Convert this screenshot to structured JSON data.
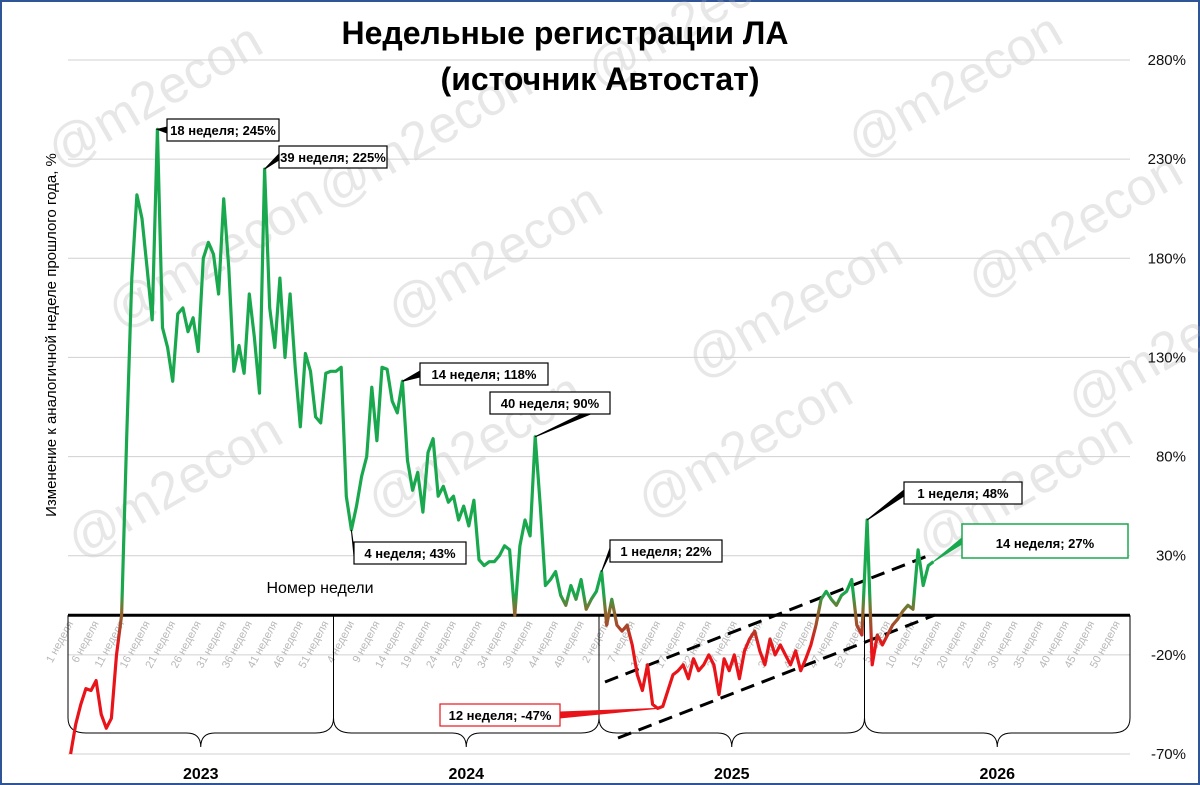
{
  "chart_data": {
    "type": "line",
    "title": "Недельные регистрации ЛА",
    "subtitle": "(источник Автостат)",
    "y_label": "Изменение к аналогичной  неделе прошлого года, %",
    "x_label": "Номер недели",
    "watermark": "@m2econ",
    "groups": [
      "2023",
      "2024",
      "2025",
      "2026"
    ],
    "categories": [
      "1 неделя",
      null,
      null,
      null,
      null,
      "6 неделя",
      null,
      null,
      null,
      null,
      "11 неделя",
      null,
      null,
      null,
      null,
      "16 неделя",
      null,
      null,
      null,
      null,
      "21 неделя",
      null,
      null,
      null,
      null,
      "26 неделя",
      null,
      null,
      null,
      null,
      "31 неделя",
      null,
      null,
      null,
      null,
      "36 неделя",
      null,
      null,
      null,
      null,
      "41 неделя",
      null,
      null,
      null,
      null,
      "46 неделя",
      null,
      null,
      null,
      null,
      "51 неделя",
      null,
      null,
      null,
      null,
      "4 недели",
      null,
      null,
      null,
      null,
      "9 неделя",
      null,
      null,
      null,
      null,
      "14 неделя",
      null,
      null,
      null,
      null,
      "19 неделя",
      null,
      null,
      null,
      null,
      "24 неделя",
      null,
      null,
      null,
      null,
      "29 неделя",
      null,
      null,
      null,
      null,
      "34 неделя",
      null,
      null,
      null,
      null,
      "39 неделя",
      null,
      null,
      null,
      null,
      "44 неделя",
      null,
      null,
      null,
      null,
      "49 неделя",
      null,
      null,
      null,
      null,
      "2 недели",
      null,
      null,
      null,
      null,
      "7 неделя",
      null,
      null,
      null,
      null,
      "12 неделя",
      null,
      null,
      null,
      null,
      "17 неделя",
      null,
      null,
      null,
      null,
      "22 неделя",
      null,
      null,
      null,
      null,
      "27 неделя",
      null,
      null,
      null,
      null,
      "32 неделя",
      null,
      null,
      null,
      null,
      "37 неделя",
      null,
      null,
      null,
      null,
      "42 неделя",
      null,
      null,
      null,
      null,
      "47 неделя",
      null,
      null,
      null,
      null,
      "52 недели",
      null,
      null,
      null,
      null,
      "5 неделя",
      null,
      null,
      null,
      null,
      "10 неделя",
      null,
      null,
      null,
      null,
      "15 неделя",
      null,
      null,
      null,
      null,
      "20 неделя",
      null,
      null,
      null,
      null,
      "25 неделя",
      null,
      null,
      null,
      null,
      "30 неделя",
      null,
      null,
      null,
      null,
      "35 неделя",
      null,
      null,
      null,
      null,
      "40 неделя",
      null,
      null,
      null,
      null,
      "45 неделя",
      null,
      null,
      null,
      null,
      "50 неделя",
      null,
      null
    ],
    "series": [
      {
        "color": "#1aa84e",
        "negative_color": "#e8141a",
        "values": [
          -70,
          -55,
          -45,
          -37,
          -38,
          -33,
          -50,
          -57,
          -52,
          -20,
          0,
          90,
          170,
          212,
          200,
          175,
          149,
          245,
          145,
          135,
          118,
          152,
          155,
          143,
          150,
          133,
          180,
          188,
          182,
          162,
          210,
          175,
          123,
          136,
          122,
          162,
          140,
          112,
          225,
          155,
          135,
          170,
          130,
          162,
          125,
          95,
          132,
          123,
          100,
          97,
          122,
          123,
          123,
          125,
          60,
          43,
          55,
          70,
          80,
          115,
          88,
          125,
          124,
          108,
          102,
          118,
          78,
          63,
          72,
          52,
          82,
          89,
          60,
          65,
          57,
          60,
          48,
          55,
          45,
          58,
          28,
          25,
          27,
          27,
          30,
          35,
          33,
          0,
          35,
          48,
          40,
          90,
          55,
          15,
          18,
          22,
          10,
          5,
          15,
          8,
          18,
          3,
          8,
          12,
          22,
          -5,
          8,
          -5,
          -8,
          -5,
          -15,
          -30,
          -38,
          -25,
          -45,
          -47,
          -46,
          -38,
          -30,
          -28,
          -25,
          -32,
          -22,
          -28,
          -25,
          -20,
          -25,
          -40,
          -22,
          -28,
          -20,
          -32,
          -18,
          -12,
          -8,
          -18,
          -25,
          -12,
          -20,
          -15,
          -20,
          -25,
          -18,
          -28,
          -22,
          -15,
          -5,
          8,
          12,
          8,
          5,
          10,
          12,
          18,
          -5,
          -10,
          48,
          -25,
          -10,
          -15,
          -10,
          -5,
          -2,
          2,
          5,
          3,
          33,
          15,
          25,
          27,
          null,
          null,
          null,
          null,
          null,
          null,
          null,
          null,
          null,
          null,
          null,
          null,
          null,
          null,
          null,
          null,
          null,
          null,
          null,
          null,
          null,
          null,
          null,
          null,
          null,
          null,
          null,
          null,
          null,
          null,
          null,
          null,
          null,
          null,
          null,
          null,
          null,
          null
        ]
      }
    ],
    "ylim": [
      -70,
      280
    ],
    "yticks": [
      {
        "value": -70,
        "label": "-70%"
      },
      {
        "value": -20,
        "label": "-20%"
      },
      {
        "value": 30,
        "label": "30%"
      },
      {
        "value": 80,
        "label": "80%"
      },
      {
        "value": 130,
        "label": "130%"
      },
      {
        "value": 180,
        "label": "180%"
      },
      {
        "value": 230,
        "label": "230%"
      },
      {
        "value": 280,
        "label": "280%"
      }
    ],
    "grid": true,
    "annotations": [
      {
        "text": "18 неделя; 245%"
      },
      {
        "text": "39 неделя; 225%"
      },
      {
        "text": "4 неделя; 43%"
      },
      {
        "text": "14 неделя; 118%"
      },
      {
        "text": "40 неделя; 90%"
      },
      {
        "text": "1 неделя; 22%"
      },
      {
        "text": "12 неделя; -47%"
      },
      {
        "text": "1 неделя; 48%"
      },
      {
        "text": "14 неделя; 27%"
      }
    ]
  }
}
